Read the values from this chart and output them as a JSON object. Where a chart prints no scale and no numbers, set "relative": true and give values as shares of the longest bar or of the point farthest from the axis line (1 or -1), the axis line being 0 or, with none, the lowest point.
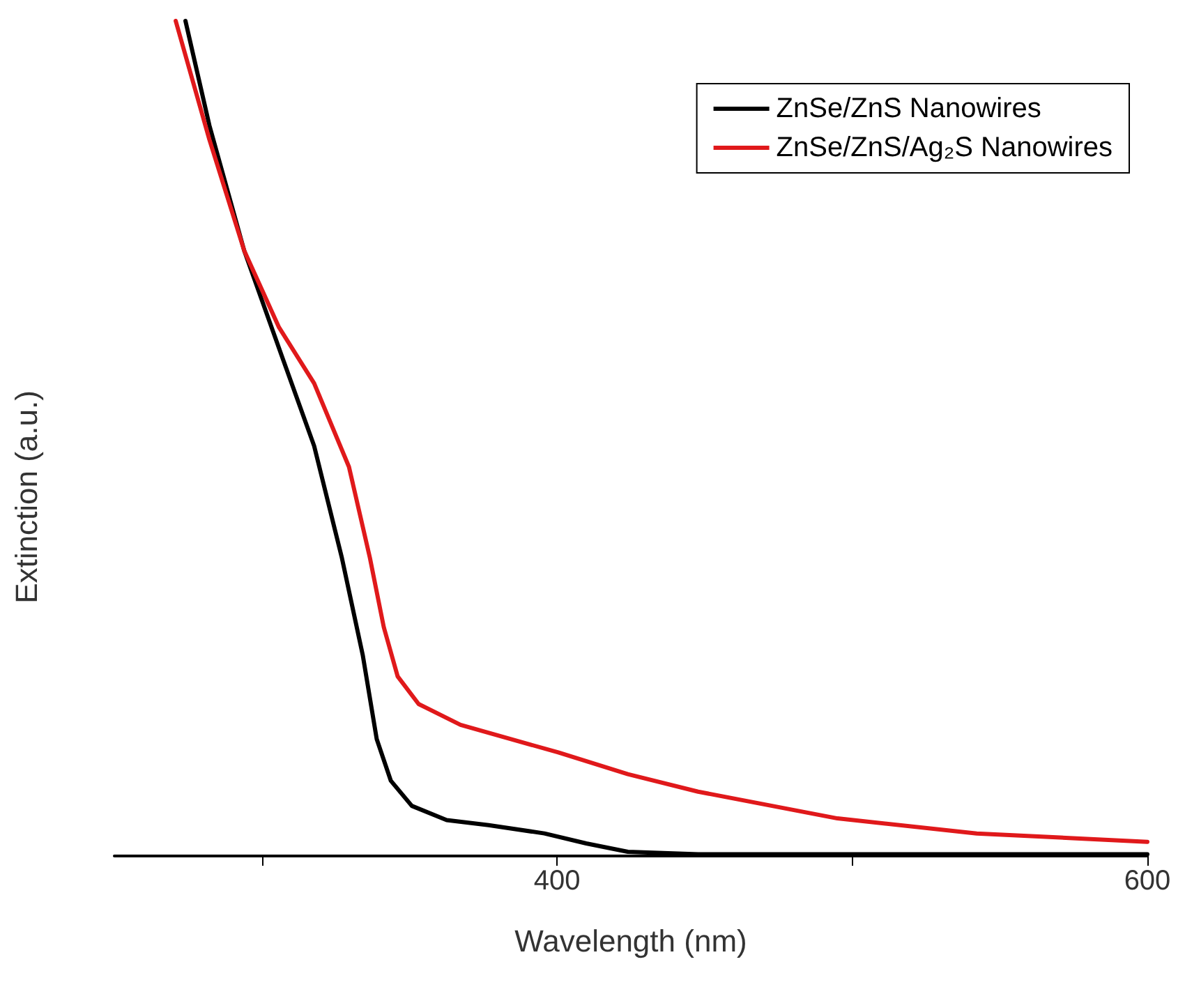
{
  "chart_data": {
    "type": "line",
    "xlabel": "Wavelength (nm)",
    "ylabel": "Extinction (a.u.)",
    "relative": true,
    "xlim": [
      250,
      600
    ],
    "xticks": [
      {
        "value": 300,
        "label": null
      },
      400,
      {
        "value": 500,
        "label": null
      },
      600
    ],
    "legend": "top right",
    "grid": false,
    "marker": "none",
    "line_style": "solid",
    "series": [
      {
        "name": "ZnSe/ZnS Nanowires",
        "color": "#000000",
        "x": [
          274.1,
          282.2,
          294,
          305.8,
          317.7,
          327.1,
          334.2,
          338.9,
          343.7,
          350.8,
          362.6,
          376.8,
          395.7,
          409.9,
          424,
          447.8,
          495,
          600
        ],
        "values": [
          1.0,
          0.875,
          0.725,
          0.608,
          0.491,
          0.357,
          0.24,
          0.14,
          0.09,
          0.06,
          0.043,
          0.037,
          0.027,
          0.015,
          0.005,
          0.002,
          0.002,
          0.002
        ]
      },
      {
        "name": "ZnSe/ZnS/Ag₂S Nanowires",
        "color": "#e0191b",
        "x": [
          270.8,
          282.2,
          294,
          305.8,
          317.7,
          329.5,
          336.6,
          341.3,
          346,
          353.1,
          367.3,
          400.4,
          424,
          447.8,
          495,
          542.2,
          600
        ],
        "values": [
          1.0,
          0.858,
          0.725,
          0.633,
          0.566,
          0.466,
          0.357,
          0.274,
          0.215,
          0.182,
          0.157,
          0.124,
          0.098,
          0.077,
          0.045,
          0.027,
          0.017
        ]
      }
    ]
  }
}
